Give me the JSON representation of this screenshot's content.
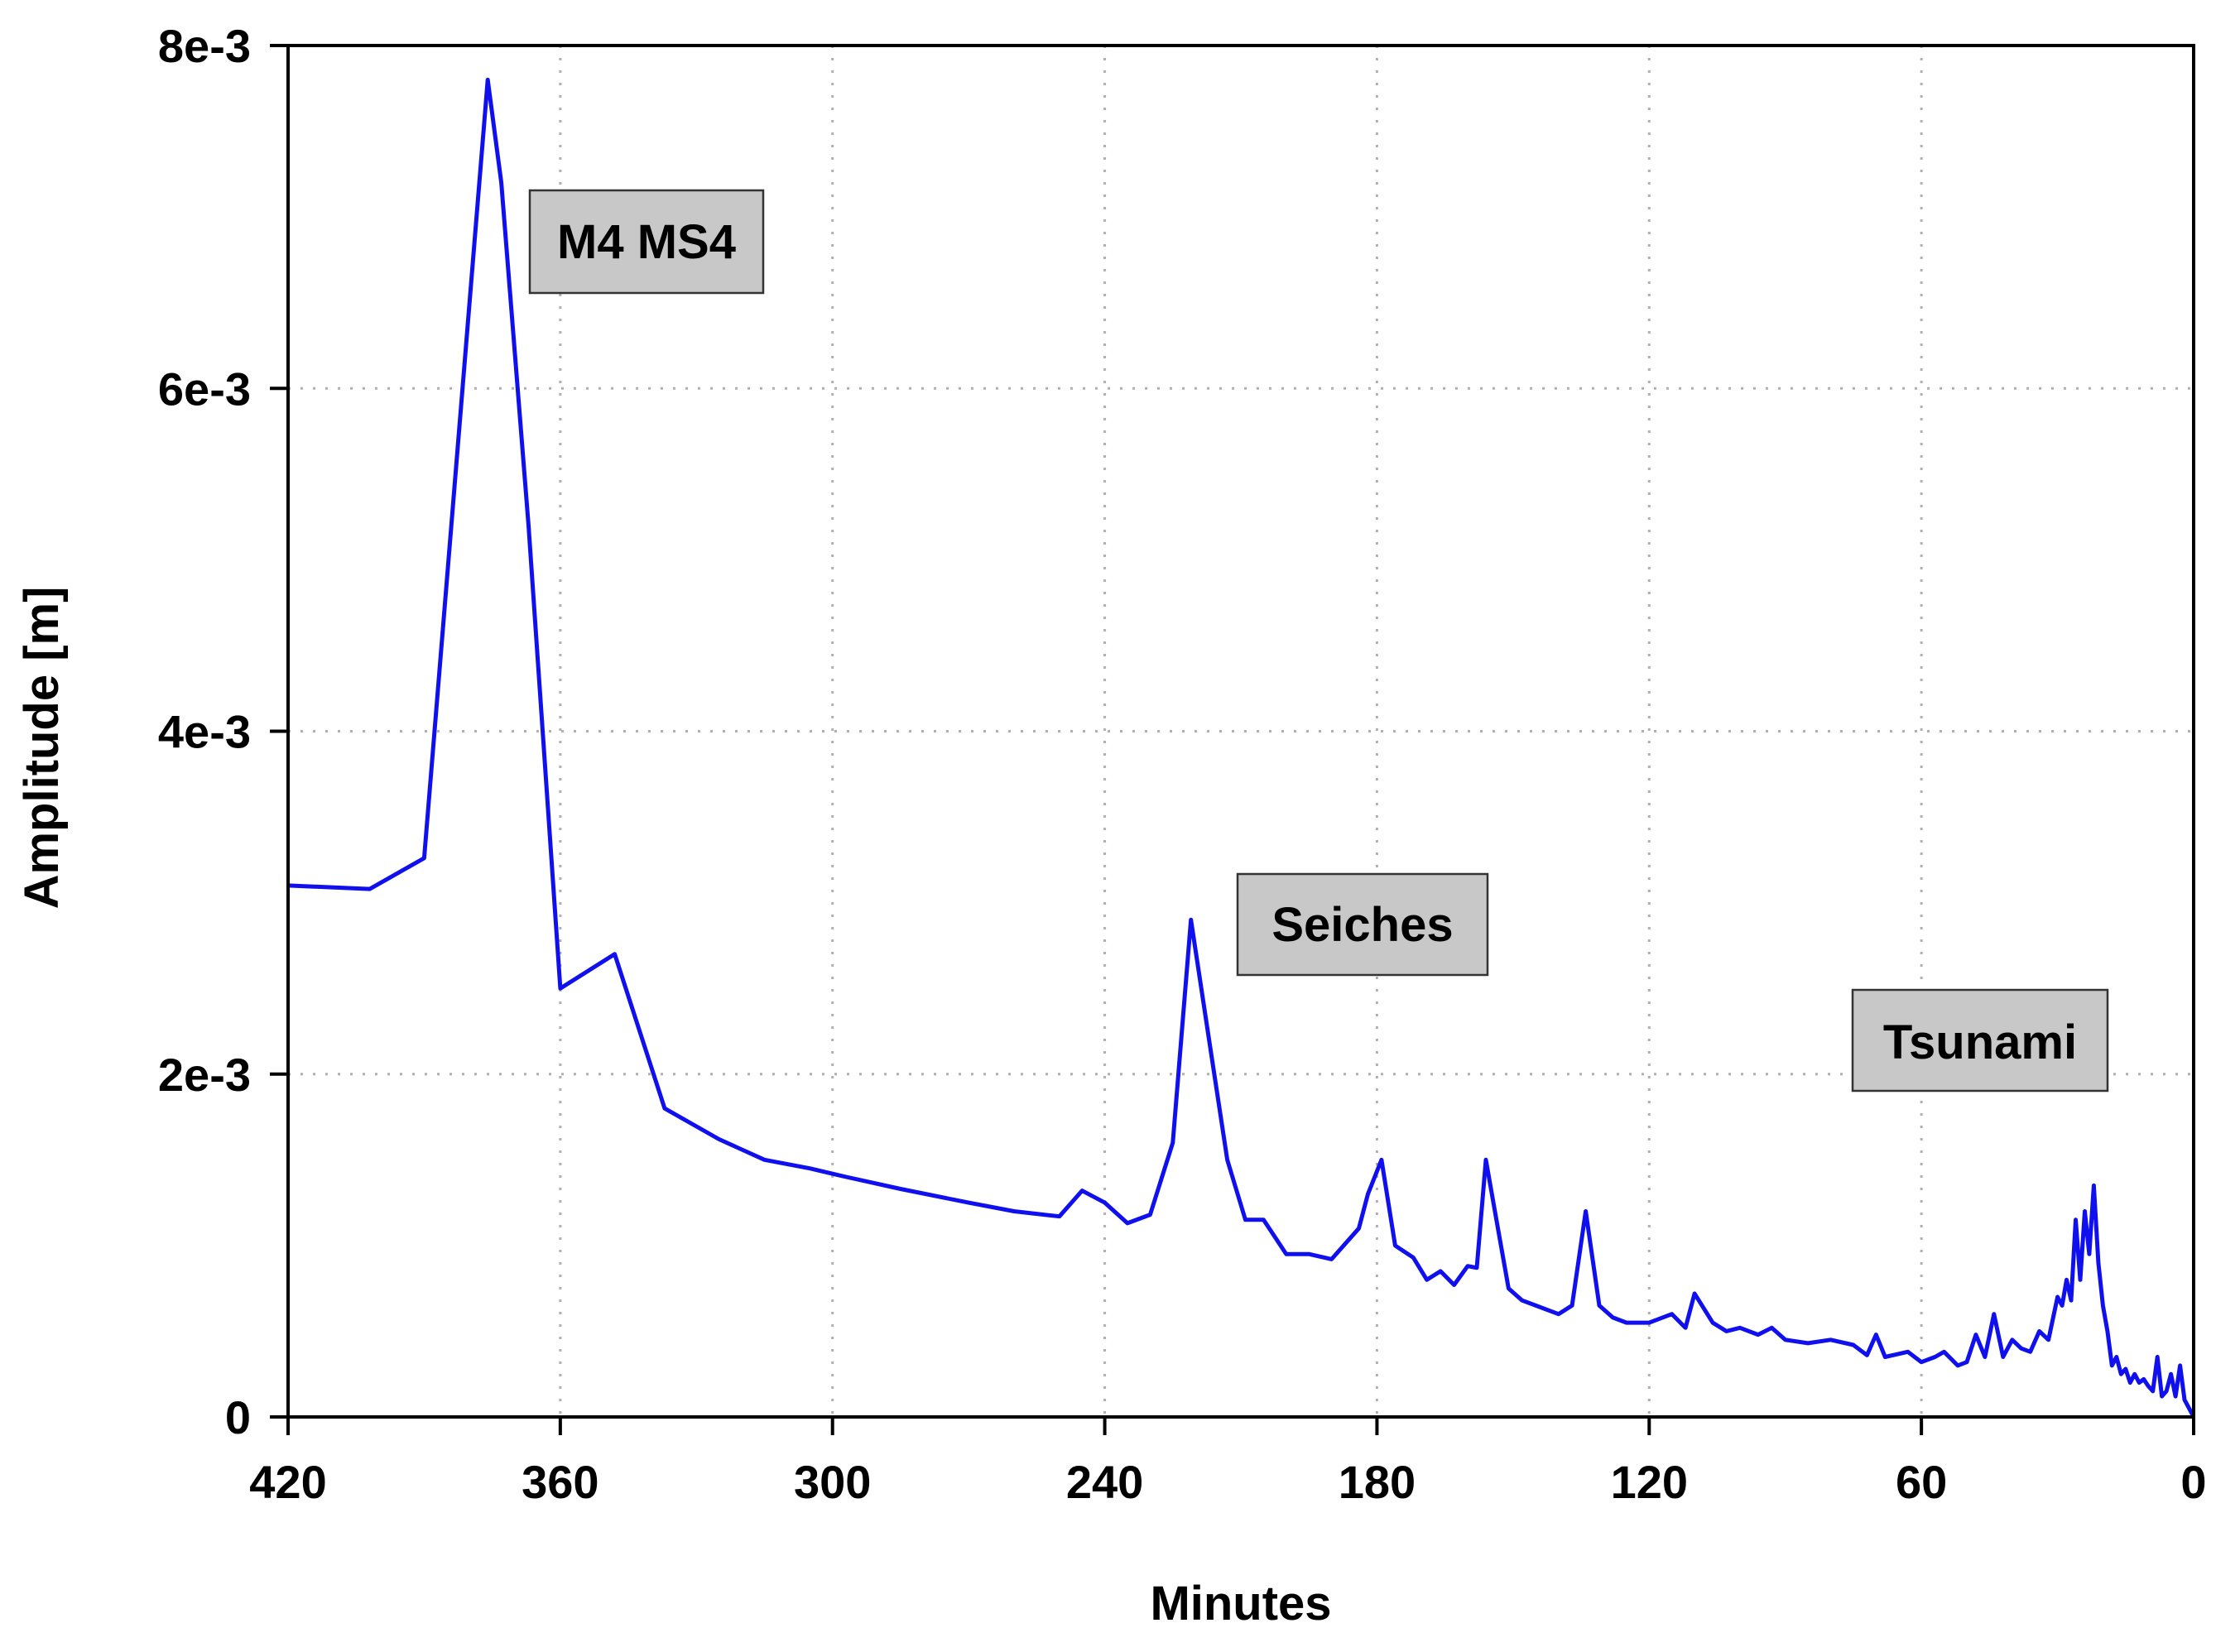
{
  "chart_data": {
    "type": "line",
    "xlabel": "Minutes",
    "ylabel": "Amplitude [m]",
    "xlim": [
      420,
      0
    ],
    "ylim": [
      0,
      0.008
    ],
    "x_reversed": true,
    "grid": true,
    "x_ticks": [
      420,
      360,
      300,
      240,
      180,
      120,
      60,
      0
    ],
    "x_tick_labels": [
      "420",
      "360",
      "300",
      "240",
      "180",
      "120",
      "60",
      "0"
    ],
    "y_ticks": [
      0,
      0.002,
      0.004,
      0.006,
      0.008
    ],
    "y_tick_labels": [
      "0",
      "2e-3",
      "4e-3",
      "6e-3",
      "8e-3"
    ],
    "series": [
      {
        "color": "#1010ee",
        "x": [
          420,
          402,
          390,
          376,
          373,
          367,
          360,
          348,
          337,
          325,
          315,
          305,
          297,
          285,
          270,
          260,
          250,
          245,
          240,
          235,
          230,
          225,
          221,
          217,
          213,
          209,
          205,
          200,
          195,
          190,
          184,
          182,
          179,
          176,
          172,
          169,
          166,
          163,
          160,
          158,
          156,
          154,
          151,
          148,
          145,
          140,
          137,
          134,
          131,
          128,
          125,
          120,
          115,
          112,
          110,
          106,
          103,
          100,
          96,
          93,
          90,
          85,
          80,
          75,
          72,
          70,
          68,
          63,
          60,
          57,
          55,
          52,
          50,
          48,
          46,
          44,
          42,
          40,
          38,
          36,
          34,
          32,
          30,
          29,
          28,
          27,
          26,
          25,
          24,
          23,
          22,
          21,
          20,
          19,
          18,
          17,
          16,
          15,
          14,
          13,
          12,
          11,
          10,
          9,
          8,
          7,
          6,
          5,
          4,
          3,
          2,
          1,
          0
        ],
        "values": [
          0.0031,
          0.00308,
          0.00326,
          0.0078,
          0.0072,
          0.0052,
          0.0025,
          0.0027,
          0.0018,
          0.00162,
          0.0015,
          0.00145,
          0.0014,
          0.00133,
          0.00125,
          0.0012,
          0.00117,
          0.00132,
          0.00125,
          0.00113,
          0.00118,
          0.0016,
          0.0029,
          0.0022,
          0.0015,
          0.00115,
          0.00115,
          0.00095,
          0.00095,
          0.00092,
          0.0011,
          0.0013,
          0.0015,
          0.001,
          0.00093,
          0.0008,
          0.00085,
          0.00077,
          0.00088,
          0.00087,
          0.0015,
          0.0012,
          0.00075,
          0.00068,
          0.00065,
          0.0006,
          0.00065,
          0.0012,
          0.00065,
          0.00058,
          0.00055,
          0.00055,
          0.0006,
          0.00052,
          0.00072,
          0.00055,
          0.0005,
          0.00052,
          0.00048,
          0.00052,
          0.00045,
          0.00043,
          0.00045,
          0.00042,
          0.00036,
          0.00048,
          0.00035,
          0.00038,
          0.00032,
          0.00035,
          0.00038,
          0.0003,
          0.00032,
          0.00048,
          0.00035,
          0.0006,
          0.00035,
          0.00045,
          0.0004,
          0.00038,
          0.0005,
          0.00045,
          0.0007,
          0.00065,
          0.0008,
          0.00068,
          0.00115,
          0.0008,
          0.0012,
          0.00095,
          0.00135,
          0.0009,
          0.00065,
          0.0005,
          0.0003,
          0.00035,
          0.00025,
          0.00028,
          0.0002,
          0.00025,
          0.0002,
          0.00022,
          0.00018,
          0.00015,
          0.00035,
          0.00012,
          0.00015,
          0.00025,
          0.00012,
          0.0003,
          0.0001,
          5e-05,
          0.0
        ]
      }
    ],
    "annotations": [
      {
        "text": "M4 MS4"
      },
      {
        "text": "Seiches"
      },
      {
        "text": "Tsunami"
      }
    ]
  }
}
